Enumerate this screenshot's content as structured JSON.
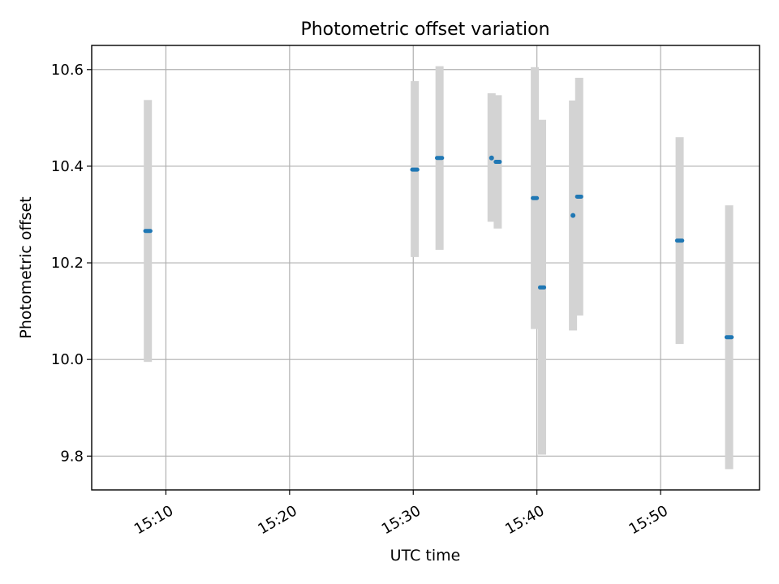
{
  "chart_data": {
    "type": "scatter",
    "title": "Photometric offset variation",
    "xlabel": "UTC time",
    "ylabel": "Photometric offset",
    "x_axis": "time (HH:MM UTC)",
    "xlim": [
      "15:04",
      "15:58"
    ],
    "ylim": [
      9.73,
      10.65
    ],
    "xticks": [
      "15:10",
      "15:20",
      "15:30",
      "15:40",
      "15:50"
    ],
    "yticks": [
      9.8,
      10.0,
      10.2,
      10.4,
      10.6
    ],
    "ytick_labels": [
      "9.8",
      "10.0",
      "10.2",
      "10.4",
      "10.6"
    ],
    "grid": true,
    "series": [
      {
        "marker_color": "#1f77b4",
        "errorbar_color": "#d3d3d3",
        "points": [
          {
            "t": "15:08:20",
            "t_end": "15:08:45",
            "y": 10.266,
            "ymin": 9.995,
            "ymax": 10.537
          },
          {
            "t": "15:29:55",
            "t_end": "15:30:20",
            "y": 10.393,
            "ymin": 10.212,
            "ymax": 10.576
          },
          {
            "t": "15:31:55",
            "t_end": "15:32:20",
            "y": 10.417,
            "ymin": 10.227,
            "ymax": 10.607
          },
          {
            "t": "15:36:20",
            "t_end": "15:36:20",
            "y": 10.417,
            "ymin": 10.285,
            "ymax": 10.551
          },
          {
            "t": "15:36:40",
            "t_end": "15:37:00",
            "y": 10.409,
            "ymin": 10.271,
            "ymax": 10.547
          },
          {
            "t": "15:39:40",
            "t_end": "15:40:00",
            "y": 10.334,
            "ymin": 10.063,
            "ymax": 10.605
          },
          {
            "t": "15:40:15",
            "t_end": "15:40:35",
            "y": 10.149,
            "ymin": 9.803,
            "ymax": 10.496
          },
          {
            "t": "15:42:55",
            "t_end": "15:42:55",
            "y": 10.298,
            "ymin": 10.06,
            "ymax": 10.536
          },
          {
            "t": "15:43:15",
            "t_end": "15:43:35",
            "y": 10.337,
            "ymin": 10.091,
            "ymax": 10.583
          },
          {
            "t": "15:51:20",
            "t_end": "15:51:45",
            "y": 10.246,
            "ymin": 10.032,
            "ymax": 10.46
          },
          {
            "t": "15:55:20",
            "t_end": "15:55:45",
            "y": 10.046,
            "ymin": 9.773,
            "ymax": 10.319
          }
        ]
      }
    ]
  }
}
